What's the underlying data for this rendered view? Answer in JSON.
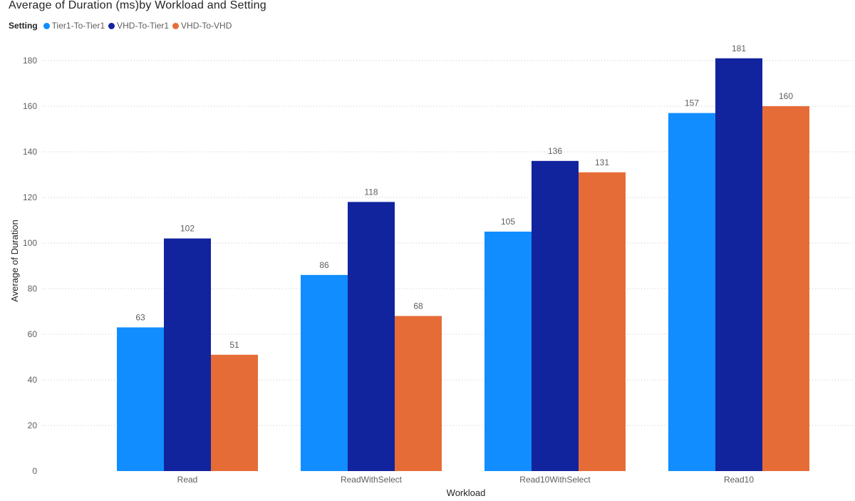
{
  "chart_data": {
    "type": "bar",
    "title": "Average of Duration (ms)by Workload and Setting",
    "legend_title": "Setting",
    "xlabel": "Workload",
    "ylabel": "Average of Duration",
    "categories": [
      "Read",
      "ReadWithSelect",
      "Read10WithSelect",
      "Read10"
    ],
    "series": [
      {
        "name": "Tier1-To-Tier1",
        "color": "#118DFF",
        "values": [
          63,
          86,
          105,
          157
        ]
      },
      {
        "name": "VHD-To-Tier1",
        "color": "#12239E",
        "values": [
          102,
          118,
          136,
          181
        ]
      },
      {
        "name": "VHD-To-VHD",
        "color": "#E66C37",
        "values": [
          51,
          68,
          131,
          160
        ]
      }
    ],
    "ylim": [
      0,
      180
    ],
    "yticks": [
      "0",
      "20",
      "40",
      "60",
      "80",
      "100",
      "120",
      "140",
      "160",
      "180"
    ],
    "grid": true,
    "legend_position": "top-left"
  }
}
